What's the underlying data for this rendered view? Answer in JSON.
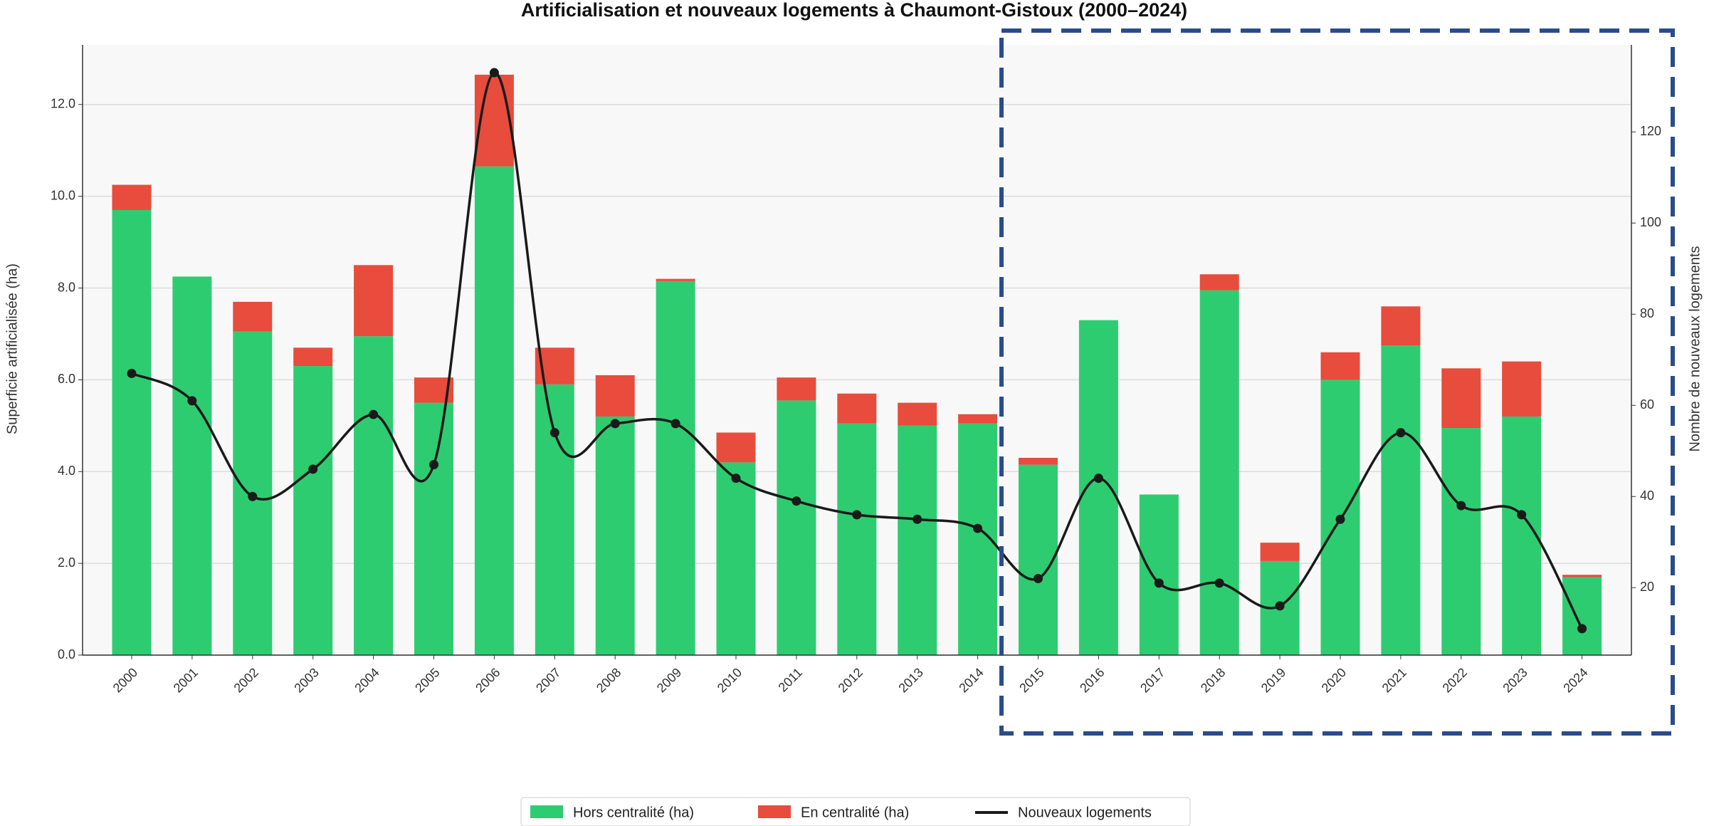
{
  "chart_data": {
    "type": "bar",
    "title": "Artificialisation et nouveaux logements à Chaumont-Gistoux (2000–2024)",
    "ylabel": "Superficie artificialisée (ha)",
    "y2label": "Nombre de nouveaux logements",
    "categories": [
      "2000",
      "2001",
      "2002",
      "2003",
      "2004",
      "2005",
      "2006",
      "2007",
      "2008",
      "2009",
      "2010",
      "2011",
      "2012",
      "2013",
      "2014",
      "2015",
      "2016",
      "2017",
      "2018",
      "2019",
      "2020",
      "2021",
      "2022",
      "2023",
      "2024"
    ],
    "stacked": true,
    "series": [
      {
        "name": "Hors centralité (ha)",
        "color": "#2ecc71",
        "type": "bar",
        "values": [
          9.7,
          8.25,
          7.05,
          6.3,
          6.95,
          5.5,
          10.65,
          5.9,
          5.2,
          8.15,
          4.2,
          5.55,
          5.05,
          5.0,
          5.05,
          4.15,
          7.3,
          3.5,
          7.95,
          2.05,
          6.0,
          6.75,
          4.95,
          5.2,
          1.7
        ]
      },
      {
        "name": "En centralité (ha)",
        "color": "#e74c3c",
        "type": "bar",
        "values": [
          0.55,
          0,
          0.65,
          0.4,
          1.55,
          0.55,
          2.0,
          0.8,
          0.9,
          0.05,
          0.65,
          0.5,
          0.65,
          0.5,
          0.2,
          0.15,
          0,
          0,
          0.35,
          0.4,
          0.6,
          0.85,
          1.3,
          1.2,
          0.05
        ]
      },
      {
        "name": "Nouveaux logements",
        "color": "#1a1a1a",
        "type": "line",
        "axis": "y2",
        "values": [
          67,
          61,
          40,
          46,
          58,
          47,
          133,
          54,
          56,
          56,
          44,
          39,
          36,
          35,
          33,
          22,
          44,
          21,
          21,
          16,
          35,
          54,
          38,
          36,
          11
        ]
      }
    ],
    "ylim": [
      0,
      13.3
    ],
    "yticks": [
      {
        "value": 0,
        "label": "0.0"
      },
      {
        "value": 2,
        "label": "2.0"
      },
      {
        "value": 4,
        "label": "4.0"
      },
      {
        "value": 6,
        "label": "6.0"
      },
      {
        "value": 8,
        "label": "8.0"
      },
      {
        "value": 10,
        "label": "10.0"
      },
      {
        "value": 12,
        "label": "12.0"
      }
    ],
    "y2lim": [
      5.2,
      139.1
    ],
    "y2ticks": [
      20,
      40,
      60,
      80,
      100,
      120
    ],
    "grid": true,
    "legend": "bottom"
  }
}
